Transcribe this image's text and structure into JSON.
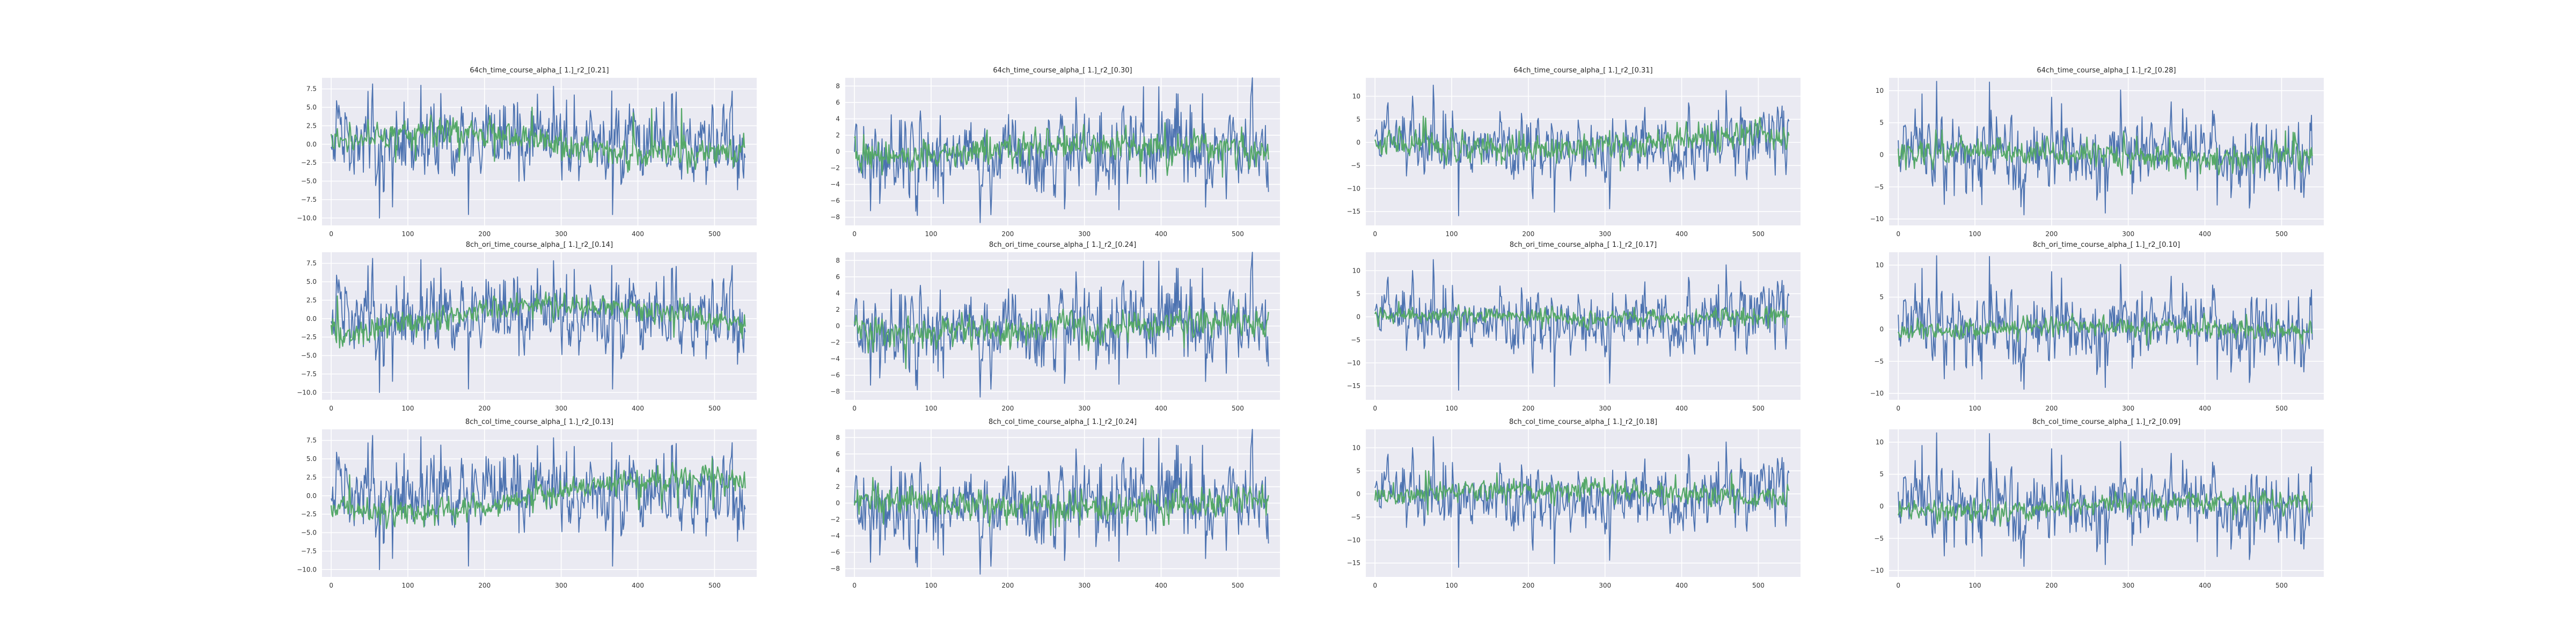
{
  "colors": {
    "background": "#ffffff",
    "axes_face": "#eaeaf2",
    "grid": "#ffffff",
    "series_blue": "#4c72b0",
    "series_green": "#55a868"
  },
  "chart_data": [
    {
      "type": "line",
      "title": "64ch_time_course_alpha_[ 1.]_r2_[0.21]",
      "xlim": [
        -12,
        555
      ],
      "ylim": [
        -11,
        9
      ],
      "xticks": [
        0,
        100,
        200,
        300,
        400,
        500
      ],
      "yticks": [
        -10,
        -7.5,
        -5,
        -2.5,
        0,
        2.5,
        5,
        7.5
      ],
      "ytick_labels": [
        "−10.0",
        "−7.5",
        "−5.0",
        "−2.5",
        "0.0",
        "2.5",
        "5.0",
        "7.5"
      ],
      "grid": true,
      "n": 541,
      "series": [
        {
          "color": "#4c72b0",
          "amp": 2.6,
          "drift": 0.6,
          "spike_min": -10.5,
          "spike_max": 8.3,
          "seed": 11
        },
        {
          "color": "#55a868",
          "amp": 0.9,
          "drift": 2.4,
          "spike_min": -2.5,
          "spike_max": 5.2,
          "seed": 12
        }
      ]
    },
    {
      "type": "line",
      "title": "64ch_time_course_alpha_[ 1.]_r2_[0.30]",
      "xlim": [
        -12,
        555
      ],
      "ylim": [
        -9,
        9
      ],
      "xticks": [
        0,
        100,
        200,
        300,
        400,
        500
      ],
      "yticks": [
        -8,
        -6,
        -4,
        -2,
        0,
        2,
        4,
        6,
        8
      ],
      "ytick_labels": [
        "−8",
        "−6",
        "−4",
        "−2",
        "0",
        "2",
        "4",
        "6",
        "8"
      ],
      "grid": true,
      "n": 541,
      "series": [
        {
          "color": "#4c72b0",
          "amp": 2.4,
          "drift": 0.2,
          "spike_min": -8.2,
          "spike_max": 7.5,
          "seed": 21
        },
        {
          "color": "#55a868",
          "amp": 0.9,
          "drift": 0.6,
          "spike_min": -3.2,
          "spike_max": 2.3,
          "seed": 22
        }
      ]
    },
    {
      "type": "line",
      "title": "64ch_time_course_alpha_[ 1.]_r2_[0.31]",
      "xlim": [
        -12,
        555
      ],
      "ylim": [
        -18,
        14
      ],
      "xticks": [
        0,
        100,
        200,
        300,
        400,
        500
      ],
      "yticks": [
        -15,
        -10,
        -5,
        0,
        5,
        10
      ],
      "ytick_labels": [
        "−15",
        "−10",
        "−5",
        "0",
        "5",
        "10"
      ],
      "grid": true,
      "n": 541,
      "series": [
        {
          "color": "#4c72b0",
          "amp": 3.2,
          "drift": 0.8,
          "spike_min": -16.5,
          "spike_max": 12.8,
          "seed": 31
        },
        {
          "color": "#55a868",
          "amp": 1.4,
          "drift": 1.5,
          "spike_min": -7.5,
          "spike_max": 6.5,
          "seed": 32
        }
      ]
    },
    {
      "type": "line",
      "title": "64ch_time_course_alpha_[ 1.]_r2_[0.28]",
      "xlim": [
        -12,
        555
      ],
      "ylim": [
        -11,
        12
      ],
      "xticks": [
        0,
        100,
        200,
        300,
        400,
        500
      ],
      "yticks": [
        -10,
        -5,
        0,
        5,
        10
      ],
      "ytick_labels": [
        "−10",
        "−5",
        "0",
        "5",
        "10"
      ],
      "grid": true,
      "n": 541,
      "series": [
        {
          "color": "#4c72b0",
          "amp": 2.8,
          "drift": 0.5,
          "spike_min": -9.5,
          "spike_max": 11.8,
          "seed": 41
        },
        {
          "color": "#55a868",
          "amp": 1.0,
          "drift": 1.0,
          "spike_min": -3.5,
          "spike_max": 4.0,
          "seed": 42
        }
      ]
    },
    {
      "type": "line",
      "title": "8ch_ori_time_course_alpha_[ 1.]_r2_[0.14]",
      "xlim": [
        -12,
        555
      ],
      "ylim": [
        -11,
        9
      ],
      "xticks": [
        0,
        100,
        200,
        300,
        400,
        500
      ],
      "yticks": [
        -10,
        -7.5,
        -5,
        -2.5,
        0,
        2.5,
        5,
        7.5
      ],
      "ytick_labels": [
        "−10.0",
        "−7.5",
        "−5.0",
        "−2.5",
        "0.0",
        "2.5",
        "5.0",
        "7.5"
      ],
      "grid": true,
      "n": 541,
      "series": [
        {
          "color": "#4c72b0",
          "amp": 2.6,
          "drift": 0.6,
          "spike_min": -10.5,
          "spike_max": 8.3,
          "seed": 11
        },
        {
          "color": "#55a868",
          "amp": 0.8,
          "drift": 2.0,
          "spike_min": -2.0,
          "spike_max": 3.5,
          "seed": 52
        }
      ]
    },
    {
      "type": "line",
      "title": "8ch_ori_time_course_alpha_[ 1.]_r2_[0.24]",
      "xlim": [
        -12,
        555
      ],
      "ylim": [
        -9,
        9
      ],
      "xticks": [
        0,
        100,
        200,
        300,
        400,
        500
      ],
      "yticks": [
        -8,
        -6,
        -4,
        -2,
        0,
        2,
        4,
        6,
        8
      ],
      "ytick_labels": [
        "−8",
        "−6",
        "−4",
        "−2",
        "0",
        "2",
        "4",
        "6",
        "8"
      ],
      "grid": true,
      "n": 541,
      "series": [
        {
          "color": "#4c72b0",
          "amp": 2.4,
          "drift": 0.2,
          "spike_min": -8.2,
          "spike_max": 7.5,
          "seed": 21
        },
        {
          "color": "#55a868",
          "amp": 0.9,
          "drift": 0.5,
          "spike_min": -3.0,
          "spike_max": 2.5,
          "seed": 62
        }
      ]
    },
    {
      "type": "line",
      "title": "8ch_ori_time_course_alpha_[ 1.]_r2_[0.17]",
      "xlim": [
        -12,
        555
      ],
      "ylim": [
        -18,
        14
      ],
      "xticks": [
        0,
        100,
        200,
        300,
        400,
        500
      ],
      "yticks": [
        -15,
        -10,
        -5,
        0,
        5,
        10
      ],
      "ytick_labels": [
        "−15",
        "−10",
        "−5",
        "0",
        "5",
        "10"
      ],
      "grid": true,
      "n": 541,
      "series": [
        {
          "color": "#4c72b0",
          "amp": 3.2,
          "drift": 0.8,
          "spike_min": -16.5,
          "spike_max": 12.8,
          "seed": 31
        },
        {
          "color": "#55a868",
          "amp": 0.8,
          "drift": 0.6,
          "spike_min": -3.0,
          "spike_max": 2.0,
          "seed": 72
        }
      ]
    },
    {
      "type": "line",
      "title": "8ch_ori_time_course_alpha_[ 1.]_r2_[0.10]",
      "xlim": [
        -12,
        555
      ],
      "ylim": [
        -11,
        12
      ],
      "xticks": [
        0,
        100,
        200,
        300,
        400,
        500
      ],
      "yticks": [
        -10,
        -5,
        0,
        5,
        10
      ],
      "ytick_labels": [
        "−10",
        "−5",
        "0",
        "5",
        "10"
      ],
      "grid": true,
      "n": 541,
      "series": [
        {
          "color": "#4c72b0",
          "amp": 2.8,
          "drift": 0.5,
          "spike_min": -9.5,
          "spike_max": 11.8,
          "seed": 41
        },
        {
          "color": "#55a868",
          "amp": 0.7,
          "drift": 0.6,
          "spike_min": -2.5,
          "spike_max": 2.5,
          "seed": 82
        }
      ]
    },
    {
      "type": "line",
      "title": "8ch_col_time_course_alpha_[ 1.]_r2_[0.13]",
      "xlim": [
        -12,
        555
      ],
      "ylim": [
        -11,
        9
      ],
      "xticks": [
        0,
        100,
        200,
        300,
        400,
        500
      ],
      "yticks": [
        -10,
        -7.5,
        -5,
        -2.5,
        0,
        2.5,
        5,
        7.5
      ],
      "ytick_labels": [
        "−10.0",
        "−7.5",
        "−5.0",
        "−2.5",
        "0.0",
        "2.5",
        "5.0",
        "7.5"
      ],
      "grid": true,
      "n": 541,
      "series": [
        {
          "color": "#4c72b0",
          "amp": 2.6,
          "drift": 0.6,
          "spike_min": -10.5,
          "spike_max": 8.3,
          "seed": 11
        },
        {
          "color": "#55a868",
          "amp": 0.8,
          "drift": 2.0,
          "spike_min": -2.0,
          "spike_max": 3.5,
          "seed": 92
        }
      ]
    },
    {
      "type": "line",
      "title": "8ch_col_time_course_alpha_[ 1.]_r2_[0.24]",
      "xlim": [
        -12,
        555
      ],
      "ylim": [
        -9,
        9
      ],
      "xticks": [
        0,
        100,
        200,
        300,
        400,
        500
      ],
      "yticks": [
        -8,
        -6,
        -4,
        -2,
        0,
        2,
        4,
        6,
        8
      ],
      "ytick_labels": [
        "−8",
        "−6",
        "−4",
        "−2",
        "0",
        "2",
        "4",
        "6",
        "8"
      ],
      "grid": true,
      "n": 541,
      "series": [
        {
          "color": "#4c72b0",
          "amp": 2.4,
          "drift": 0.2,
          "spike_min": -8.2,
          "spike_max": 7.5,
          "seed": 21
        },
        {
          "color": "#55a868",
          "amp": 0.9,
          "drift": 0.5,
          "spike_min": -3.0,
          "spike_max": 2.5,
          "seed": 102
        }
      ]
    },
    {
      "type": "line",
      "title": "8ch_col_time_course_alpha_[ 1.]_r2_[0.18]",
      "xlim": [
        -12,
        555
      ],
      "ylim": [
        -18,
        14
      ],
      "xticks": [
        0,
        100,
        200,
        300,
        400,
        500
      ],
      "yticks": [
        -15,
        -10,
        -5,
        0,
        5,
        10
      ],
      "ytick_labels": [
        "−15",
        "−10",
        "−5",
        "0",
        "5",
        "10"
      ],
      "grid": true,
      "n": 541,
      "series": [
        {
          "color": "#4c72b0",
          "amp": 3.2,
          "drift": 0.8,
          "spike_min": -16.5,
          "spike_max": 12.8,
          "seed": 31
        },
        {
          "color": "#55a868",
          "amp": 1.1,
          "drift": 1.2,
          "spike_min": -5.0,
          "spike_max": 5.5,
          "seed": 112
        }
      ]
    },
    {
      "type": "line",
      "title": "8ch_col_time_course_alpha_[ 1.]_r2_[0.09]",
      "xlim": [
        -12,
        555
      ],
      "ylim": [
        -11,
        12
      ],
      "xticks": [
        0,
        100,
        200,
        300,
        400,
        500
      ],
      "yticks": [
        -10,
        -5,
        0,
        5,
        10
      ],
      "ytick_labels": [
        "−10",
        "−5",
        "0",
        "5",
        "10"
      ],
      "grid": true,
      "n": 541,
      "series": [
        {
          "color": "#4c72b0",
          "amp": 2.8,
          "drift": 0.5,
          "spike_min": -9.5,
          "spike_max": 11.8,
          "seed": 41
        },
        {
          "color": "#55a868",
          "amp": 0.7,
          "drift": 0.6,
          "spike_min": -2.5,
          "spike_max": 2.5,
          "seed": 122
        }
      ]
    }
  ]
}
